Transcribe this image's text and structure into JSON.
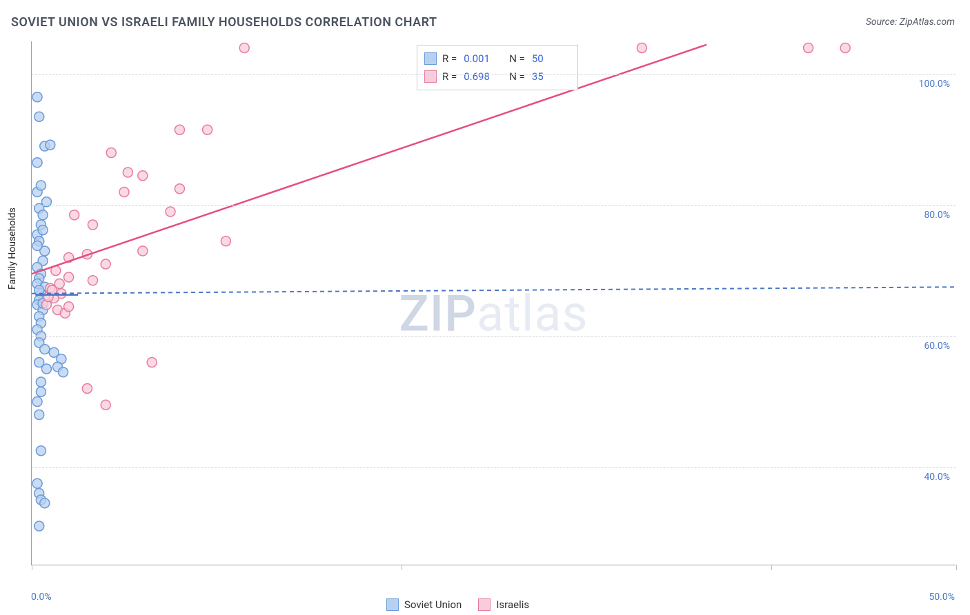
{
  "title": "SOVIET UNION VS ISRAELI FAMILY HOUSEHOLDS CORRELATION CHART",
  "source_label": "Source: ZipAtlas.com",
  "ylabel": "Family Households",
  "watermark_a": "ZIP",
  "watermark_b": "atlas",
  "chart": {
    "type": "scatter",
    "xlim": [
      0,
      50
    ],
    "ylim": [
      25,
      105
    ],
    "x_ticks": [
      0,
      20,
      40,
      50
    ],
    "x_tick_labels": {
      "0": "0.0%",
      "50": "50.0%"
    },
    "y_ticks": [
      40,
      60,
      80,
      100
    ],
    "y_tick_labels": {
      "40": "40.0%",
      "60": "60.0%",
      "80": "80.0%",
      "100": "100.0%"
    },
    "grid_color": "#d0d4dc",
    "axis_color": "#9aa0ad",
    "background_color": "#ffffff",
    "label_color": "#4a76c7",
    "label_fontsize": 14,
    "title_color": "#4a5260",
    "title_fontsize": 18,
    "marker_radius": 7,
    "marker_stroke_width": 1.5,
    "series": [
      {
        "name": "Soviet Union",
        "fill_color": "#b8d0f0",
        "stroke_color": "#6a9ad8",
        "line_color": "#4a76c7",
        "line_dash": "6,5",
        "line_width": 2,
        "R": "0.001",
        "N": "50",
        "regression": {
          "x1": 0,
          "y1": 66.5,
          "x2": 50,
          "y2": 67.5
        },
        "short_seg": {
          "x1": 0.2,
          "y1": 66.3,
          "x2": 2.5,
          "y2": 66.3
        },
        "points": [
          [
            0.3,
            96.5
          ],
          [
            0.4,
            93.5
          ],
          [
            0.7,
            89.0
          ],
          [
            1.0,
            89.2
          ],
          [
            0.3,
            86.5
          ],
          [
            0.3,
            82.0
          ],
          [
            0.4,
            79.5
          ],
          [
            0.6,
            78.5
          ],
          [
            0.5,
            77.0
          ],
          [
            0.3,
            75.5
          ],
          [
            0.4,
            74.5
          ],
          [
            0.7,
            73.0
          ],
          [
            0.6,
            71.5
          ],
          [
            0.3,
            70.5
          ],
          [
            0.5,
            69.5
          ],
          [
            0.4,
            68.8
          ],
          [
            0.3,
            68.0
          ],
          [
            0.7,
            67.5
          ],
          [
            0.5,
            66.5
          ],
          [
            0.4,
            65.5
          ],
          [
            0.3,
            64.8
          ],
          [
            0.6,
            64.0
          ],
          [
            0.4,
            63.0
          ],
          [
            0.5,
            62.0
          ],
          [
            0.3,
            61.0
          ],
          [
            0.5,
            60.0
          ],
          [
            0.4,
            59.0
          ],
          [
            0.7,
            58.0
          ],
          [
            1.2,
            57.5
          ],
          [
            1.6,
            56.5
          ],
          [
            0.4,
            56.0
          ],
          [
            0.8,
            55.0
          ],
          [
            1.4,
            55.3
          ],
          [
            1.7,
            54.5
          ],
          [
            0.5,
            53.0
          ],
          [
            0.3,
            50.0
          ],
          [
            0.4,
            48.0
          ],
          [
            0.5,
            42.5
          ],
          [
            0.3,
            37.5
          ],
          [
            0.4,
            36.0
          ],
          [
            0.5,
            35.0
          ],
          [
            0.7,
            34.5
          ],
          [
            0.4,
            31.0
          ],
          [
            0.3,
            73.8
          ],
          [
            0.6,
            76.2
          ],
          [
            0.8,
            80.5
          ],
          [
            0.5,
            83.0
          ],
          [
            0.4,
            67.0
          ],
          [
            0.6,
            65.0
          ],
          [
            0.5,
            51.5
          ]
        ]
      },
      {
        "name": "Israelis",
        "fill_color": "#f7cdd9",
        "stroke_color": "#e97ba0",
        "line_color": "#e64d82",
        "line_dash": "none",
        "line_width": 2.5,
        "R": "0.698",
        "N": "35",
        "regression": {
          "x1": 0,
          "y1": 69.5,
          "x2": 36.5,
          "y2": 104.5
        },
        "points": [
          [
            11.5,
            104.0
          ],
          [
            33.0,
            104.0
          ],
          [
            42.0,
            104.0
          ],
          [
            44.0,
            104.0
          ],
          [
            8.0,
            91.5
          ],
          [
            9.5,
            91.5
          ],
          [
            4.3,
            88.0
          ],
          [
            5.2,
            85.0
          ],
          [
            6.0,
            84.5
          ],
          [
            5.0,
            82.0
          ],
          [
            8.0,
            82.5
          ],
          [
            2.3,
            78.5
          ],
          [
            7.5,
            79.0
          ],
          [
            3.3,
            77.0
          ],
          [
            10.5,
            74.5
          ],
          [
            6.0,
            73.0
          ],
          [
            2.0,
            72.0
          ],
          [
            3.0,
            72.5
          ],
          [
            4.0,
            71.0
          ],
          [
            1.3,
            70.0
          ],
          [
            2.0,
            69.0
          ],
          [
            3.3,
            68.5
          ],
          [
            1.0,
            67.3
          ],
          [
            1.6,
            66.5
          ],
          [
            1.2,
            65.8
          ],
          [
            0.8,
            64.8
          ],
          [
            1.4,
            64.0
          ],
          [
            1.8,
            63.5
          ],
          [
            2.0,
            64.5
          ],
          [
            0.9,
            66.0
          ],
          [
            1.1,
            67.0
          ],
          [
            1.5,
            68.0
          ],
          [
            3.0,
            52.0
          ],
          [
            6.5,
            56.0
          ],
          [
            4.0,
            49.5
          ]
        ]
      }
    ]
  },
  "legend_top": {
    "r_label": "R =",
    "n_label": "N ="
  },
  "legend_bottom": {
    "series1_label": "Soviet Union",
    "series2_label": "Israelis"
  }
}
